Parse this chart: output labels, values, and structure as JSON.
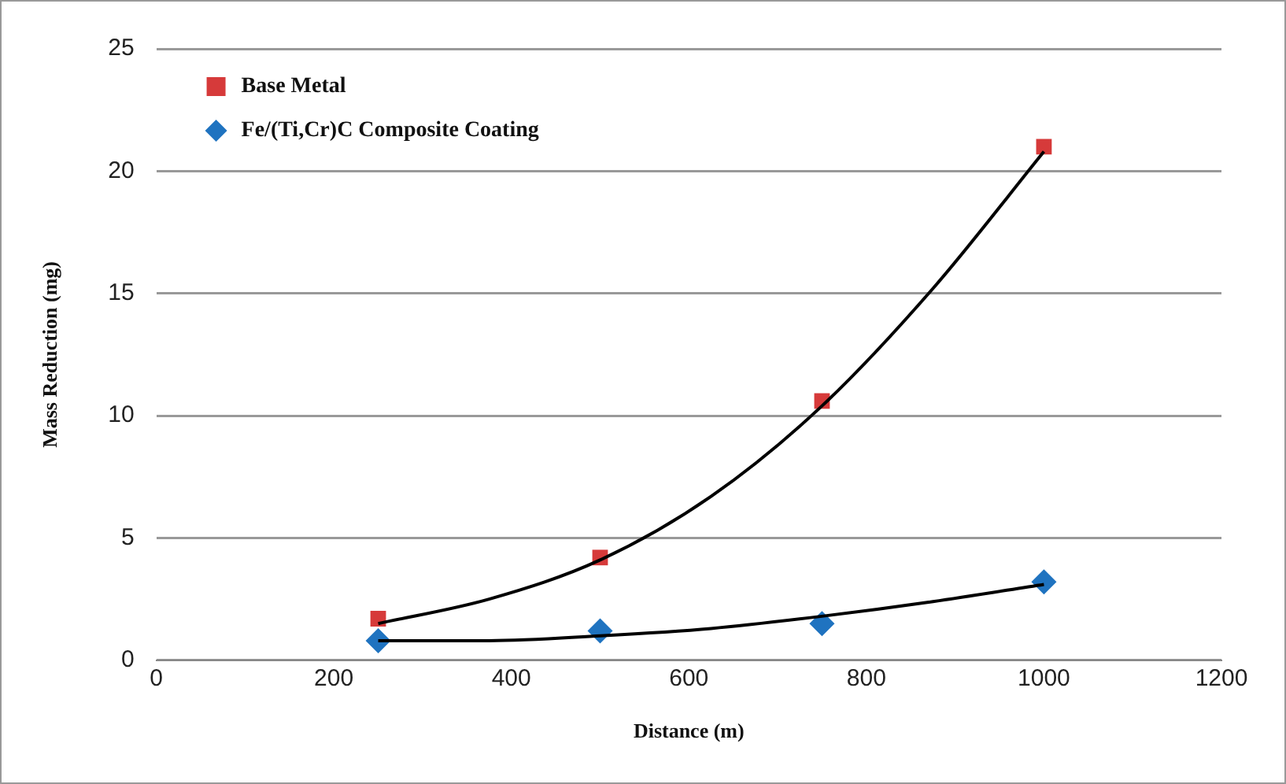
{
  "chart_data": {
    "type": "scatter",
    "xlabel": "Distance (m)",
    "ylabel": "Mass Reduction (mg)",
    "xlim": [
      0,
      1200
    ],
    "xticks": [
      0,
      200,
      400,
      600,
      800,
      1000,
      1200
    ],
    "ylim": [
      0,
      25
    ],
    "yticks": [
      0,
      5,
      10,
      15,
      20,
      25
    ],
    "grid": "y",
    "legend": "top left",
    "series": [
      {
        "name": "Base Metal",
        "color": "#d63a3a",
        "marker": "square",
        "x": [
          250,
          500,
          750,
          1000
        ],
        "values": [
          1.7,
          4.2,
          10.6,
          21.0
        ]
      },
      {
        "name": "Fe/(Ti,Cr)C Composite Coating",
        "color": "#1f73c0",
        "marker": "diamond",
        "x": [
          250,
          500,
          750,
          1000
        ],
        "values": [
          0.8,
          1.2,
          1.5,
          3.2
        ]
      },
      {
        "type": "line",
        "color": "#000000",
        "marker": "none",
        "x": [
          250,
          375,
          500,
          625,
          750,
          875,
          1000
        ],
        "values": [
          1.5,
          2.5,
          4.1,
          6.7,
          10.4,
          15.2,
          20.8
        ]
      },
      {
        "type": "line",
        "color": "#000000",
        "marker": "none",
        "x": [
          250,
          375,
          500,
          625,
          750,
          875,
          1000
        ],
        "values": [
          0.8,
          0.8,
          1.0,
          1.3,
          1.8,
          2.4,
          3.1
        ]
      }
    ]
  }
}
